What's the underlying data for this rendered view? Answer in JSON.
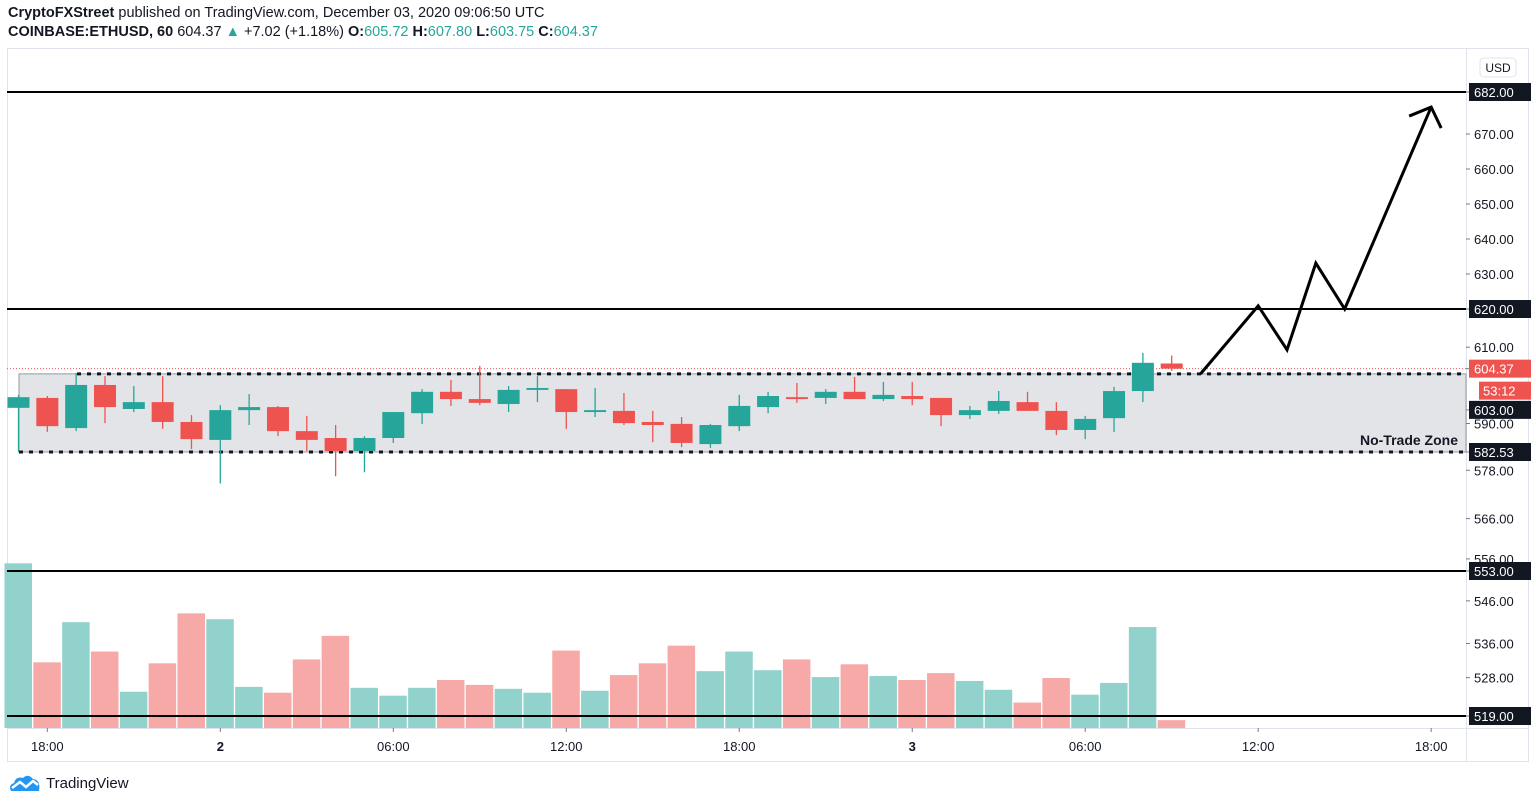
{
  "header": {
    "author": "CryptoFXStreet",
    "published": "published on TradingView.com, December 03, 2020 09:06:50 UTC",
    "symbol": "COINBASE:ETHUSD, 60",
    "last": "604.37",
    "change": "+7.02 (+1.18%)",
    "o_label": "O:",
    "o": "605.72",
    "h_label": "H:",
    "h": "607.80",
    "l_label": "L:",
    "l": "603.75",
    "c_label": "C:",
    "c": "604.37"
  },
  "footer": {
    "brand": "TradingView"
  },
  "chart_data": {
    "type": "candlestick",
    "currency": "USD",
    "colors": {
      "up": "#26a69a",
      "down": "#ef5350",
      "vol_up": "#92d2cc",
      "vol_down": "#f7a9a7",
      "line": "#000000",
      "zone": "#e3e4e8",
      "label_bg": "#131722"
    },
    "start_time": "2020-12-01 17:00",
    "interval_hours": 1,
    "ohlc": [
      [
        594.1,
        597.5,
        582.5,
        596.9
      ],
      [
        596.7,
        597.2,
        587.8,
        589.3
      ],
      [
        588.8,
        603.2,
        588.0,
        600.1
      ],
      [
        600.1,
        602.4,
        590.1,
        594.3
      ],
      [
        593.8,
        599.8,
        593.0,
        595.6
      ],
      [
        595.6,
        602.4,
        588.6,
        590.4
      ],
      [
        590.4,
        592.2,
        583.3,
        585.9
      ],
      [
        585.7,
        594.8,
        574.7,
        593.5
      ],
      [
        593.5,
        597.7,
        589.6,
        594.3
      ],
      [
        594.3,
        594.6,
        586.7,
        588.0
      ],
      [
        588.0,
        592.0,
        582.8,
        585.7
      ],
      [
        586.2,
        589.6,
        576.5,
        582.8
      ],
      [
        582.8,
        586.7,
        577.5,
        586.2
      ],
      [
        586.2,
        593.0,
        584.9,
        593.0
      ],
      [
        592.7,
        599.0,
        589.9,
        598.3
      ],
      [
        598.3,
        601.4,
        594.6,
        596.4
      ],
      [
        596.4,
        605.1,
        594.8,
        595.4
      ],
      [
        595.1,
        599.8,
        593.0,
        598.8
      ],
      [
        598.8,
        602.4,
        595.6,
        599.3
      ],
      [
        599.0,
        599.0,
        588.6,
        593.0
      ],
      [
        593.0,
        599.3,
        591.7,
        593.5
      ],
      [
        593.3,
        598.0,
        589.6,
        590.1
      ],
      [
        590.4,
        593.3,
        585.1,
        589.6
      ],
      [
        589.9,
        591.7,
        583.8,
        584.9
      ],
      [
        584.6,
        589.9,
        583.6,
        589.6
      ],
      [
        589.3,
        597.5,
        588.0,
        594.6
      ],
      [
        594.3,
        598.3,
        592.7,
        597.2
      ],
      [
        596.9,
        600.6,
        595.4,
        596.4
      ],
      [
        596.7,
        599.0,
        595.1,
        598.3
      ],
      [
        598.3,
        602.2,
        596.4,
        596.4
      ],
      [
        596.4,
        600.9,
        595.9,
        597.5
      ],
      [
        597.2,
        600.9,
        594.8,
        596.4
      ],
      [
        596.7,
        596.7,
        589.3,
        592.2
      ],
      [
        592.2,
        594.6,
        591.2,
        593.5
      ],
      [
        593.3,
        598.5,
        592.5,
        595.9
      ],
      [
        595.6,
        598.3,
        593.3,
        593.3
      ],
      [
        593.3,
        595.6,
        587.0,
        588.3
      ],
      [
        588.3,
        592.0,
        585.9,
        591.2
      ],
      [
        591.4,
        599.6,
        587.8,
        598.5
      ],
      [
        598.5,
        608.5,
        595.6,
        605.9
      ],
      [
        605.72,
        607.8,
        603.75,
        604.37
      ]
    ],
    "volume_relative": [
      168,
      67,
      108,
      78,
      37,
      66,
      117,
      111,
      42,
      36,
      70,
      94,
      41,
      33,
      41,
      49,
      44,
      40,
      36,
      79,
      38,
      54,
      66,
      84,
      58,
      78,
      59,
      70,
      52,
      65,
      53,
      49,
      56,
      48,
      39,
      26,
      51,
      34,
      46,
      103,
      8
    ],
    "y_ticks": [
      "670.00",
      "660.00",
      "650.00",
      "640.00",
      "630.00",
      "610.00",
      "590.00",
      "578.00",
      "566.00",
      "556.00",
      "546.00",
      "536.00",
      "528.00"
    ],
    "x_ticks": [
      {
        "label": "18:00",
        "time": "2020-12-01 18:00"
      },
      {
        "label": "2",
        "time": "2020-12-02 00:00",
        "bold": true
      },
      {
        "label": "06:00",
        "time": "2020-12-02 06:00"
      },
      {
        "label": "12:00",
        "time": "2020-12-02 12:00"
      },
      {
        "label": "18:00",
        "time": "2020-12-02 18:00"
      },
      {
        "label": "3",
        "time": "2020-12-03 00:00",
        "bold": true
      },
      {
        "label": "06:00",
        "time": "2020-12-03 06:00"
      },
      {
        "label": "12:00",
        "time": "2020-12-03 12:00"
      },
      {
        "label": "18:00",
        "time": "2020-12-03 18:00"
      }
    ],
    "horizontal_levels": [
      {
        "price": 682.0,
        "label": "682.00"
      },
      {
        "price": 620.0,
        "label": "620.00"
      },
      {
        "price": 553.0,
        "label": "553.00"
      },
      {
        "price": 519.0,
        "label": "519.00"
      }
    ],
    "zone": {
      "label": "No-Trade Zone",
      "top": 603.0,
      "bottom": 582.53,
      "top_label": "603.00",
      "bottom_label": "582.53"
    },
    "current_price": {
      "label": "604.37",
      "countdown": "53:12"
    },
    "projection_path": [
      {
        "time": "2020-12-03 10:00",
        "price": 603.0
      },
      {
        "time": "2020-12-03 12:00",
        "price": 620.9
      },
      {
        "time": "2020-12-03 13:00",
        "price": 609.3
      },
      {
        "time": "2020-12-03 14:00",
        "price": 633.1
      },
      {
        "time": "2020-12-03 15:00",
        "price": 620.0
      },
      {
        "time": "2020-12-03 18:00",
        "price": 677.7
      }
    ]
  }
}
